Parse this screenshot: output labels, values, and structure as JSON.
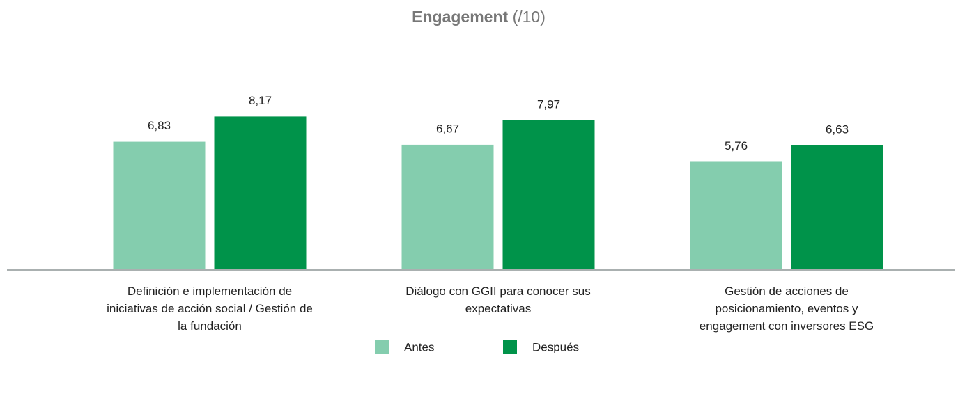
{
  "chart_data": {
    "type": "bar",
    "title": "Engagement",
    "title_unit": "(/10)",
    "categories": [
      "Definición e implementación de iniciativas de acción social / Gestión de la fundación",
      "Diálogo con GGII para conocer sus expectativas",
      "Gestión de acciones de posicionamiento, eventos y engagement con inversores ESG"
    ],
    "series": [
      {
        "name": "Antes",
        "color": "#84cdae",
        "values": [
          6.83,
          6.67,
          5.76
        ],
        "value_labels": [
          "6,83",
          "6,67",
          "5,76"
        ]
      },
      {
        "name": "Después",
        "color": "#00934a",
        "values": [
          8.17,
          7.97,
          6.63
        ],
        "value_labels": [
          "8,17",
          "7,97",
          "6,63"
        ]
      }
    ],
    "ylim": [
      0,
      10
    ],
    "grid": false
  }
}
